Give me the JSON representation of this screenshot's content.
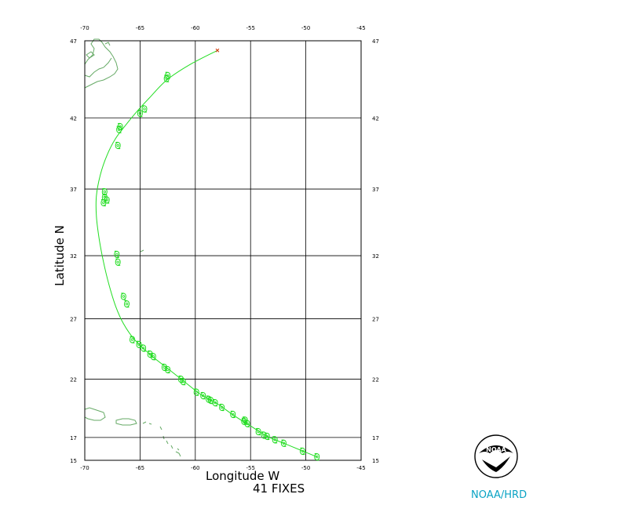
{
  "map": {
    "xlabel": "Longitude W",
    "ylabel": "Latitude N",
    "fix_count_label": "41 FIXES",
    "credit": "NOAA/HRD",
    "logo_text": "NOAA",
    "lon_ticks": [
      -70,
      -65,
      -60,
      -55,
      -50,
      -45
    ],
    "lat_ticks": [
      15,
      17,
      22,
      27,
      32,
      37,
      42,
      47
    ],
    "lon_range": [
      -70,
      -45
    ],
    "lat_range": [
      15,
      47
    ],
    "colors": {
      "track": "#22dd22",
      "coast": "#66aa66",
      "grid": "#000000",
      "end_marker": "#cc3300",
      "credit": "#0aa3c4"
    }
  },
  "chart_data": {
    "type": "scatter",
    "title": "",
    "xlabel": "Longitude W",
    "ylabel": "Latitude N",
    "xlim": [
      -70,
      -45
    ],
    "ylim": [
      15,
      47
    ],
    "grid": true,
    "track": [
      [
        -49.0,
        15.3
      ],
      [
        -50.5,
        15.9
      ],
      [
        -52.0,
        16.5
      ],
      [
        -53.5,
        17.1
      ],
      [
        -55.0,
        18.0
      ],
      [
        -56.5,
        18.9
      ],
      [
        -58.0,
        19.9
      ],
      [
        -59.5,
        20.7
      ],
      [
        -61.0,
        21.8
      ],
      [
        -62.5,
        22.9
      ],
      [
        -64.0,
        24.0
      ],
      [
        -65.5,
        25.3
      ],
      [
        -66.5,
        26.6
      ],
      [
        -67.2,
        28.0
      ],
      [
        -67.8,
        29.7
      ],
      [
        -68.3,
        31.5
      ],
      [
        -68.7,
        33.3
      ],
      [
        -68.95,
        35.0
      ],
      [
        -68.95,
        36.5
      ],
      [
        -68.6,
        38.0
      ],
      [
        -68.0,
        39.4
      ],
      [
        -67.2,
        40.6
      ],
      [
        -66.2,
        41.6
      ],
      [
        -65.2,
        42.5
      ],
      [
        -64.2,
        43.3
      ],
      [
        -62.6,
        44.5
      ],
      [
        -60.5,
        45.5
      ],
      [
        -58.0,
        46.4
      ]
    ],
    "fixes": [
      [
        -49.0,
        15.3
      ],
      [
        -50.3,
        15.8
      ],
      [
        -52.0,
        16.5
      ],
      [
        -52.8,
        16.8
      ],
      [
        -53.5,
        17.1
      ],
      [
        -54.3,
        17.5
      ],
      [
        -55.3,
        18.2
      ],
      [
        -55.6,
        18.4
      ],
      [
        -56.6,
        19.0
      ],
      [
        -57.6,
        19.6
      ],
      [
        -58.2,
        20.0
      ],
      [
        -58.8,
        20.3
      ],
      [
        -59.3,
        20.6
      ],
      [
        -59.9,
        20.9
      ],
      [
        -61.1,
        21.8
      ],
      [
        -61.3,
        22.0
      ],
      [
        -62.5,
        22.8
      ],
      [
        -62.8,
        23.0
      ],
      [
        -63.8,
        23.9
      ],
      [
        -64.1,
        24.1
      ],
      [
        -64.7,
        24.6
      ],
      [
        -65.1,
        24.9
      ],
      [
        -66.2,
        28.2
      ],
      [
        -66.5,
        28.8
      ],
      [
        -67.0,
        31.5
      ],
      [
        -67.1,
        32.1
      ],
      [
        -68.3,
        36.0
      ],
      [
        -68.2,
        36.4
      ],
      [
        -68.2,
        36.8
      ],
      [
        -67.0,
        40.1
      ],
      [
        -66.9,
        41.2
      ],
      [
        -66.8,
        41.4
      ],
      [
        -65.0,
        42.3
      ],
      [
        -64.6,
        42.6
      ],
      [
        -62.6,
        44.6
      ],
      [
        -62.5,
        44.8
      ],
      [
        -55.5,
        18.5
      ],
      [
        -53.8,
        17.2
      ],
      [
        -58.6,
        20.2
      ],
      [
        -65.7,
        25.3
      ],
      [
        -68.0,
        36.2
      ]
    ],
    "end_marker": [
      -58.0,
      46.4
    ]
  }
}
